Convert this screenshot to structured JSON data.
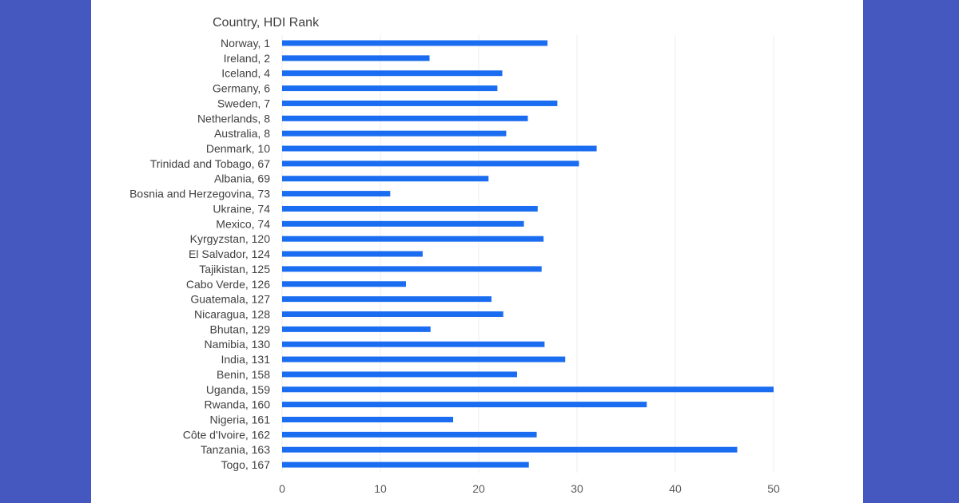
{
  "chart_data": {
    "type": "bar",
    "orientation": "horizontal",
    "y_axis_title": "Country, HDI Rank",
    "categories": [
      "Norway, 1",
      "Ireland, 2",
      "Iceland, 4",
      "Germany, 6",
      "Sweden, 7",
      "Netherlands, 8",
      "Australia, 8",
      "Denmark, 10",
      "Trinidad and Tobago, 67",
      "Albania, 69",
      "Bosnia and Herzegovina, 73",
      "Ukraine, 74",
      "Mexico, 74",
      "Kyrgyzstan, 120",
      "El Salvador, 124",
      "Tajikistan, 125",
      "Cabo Verde, 126",
      "Guatemala, 127",
      "Nicaragua, 128",
      "Bhutan, 129",
      "Namibia, 130",
      "India, 131",
      "Benin, 158",
      "Uganda, 159",
      "Rwanda, 160",
      "Nigeria, 161",
      "Côte d'Ivoire, 162",
      "Tanzania, 163",
      "Togo, 167"
    ],
    "values": [
      27.0,
      15.0,
      22.4,
      21.9,
      28.0,
      25.0,
      22.8,
      32.0,
      30.2,
      21.0,
      11.0,
      26.0,
      24.6,
      26.6,
      14.3,
      26.4,
      12.6,
      21.3,
      22.5,
      15.1,
      26.7,
      28.8,
      23.9,
      50.0,
      37.1,
      17.4,
      25.9,
      46.3,
      25.1
    ],
    "xlim": [
      0,
      50
    ],
    "xticks": [
      0,
      10,
      20,
      30,
      40,
      50
    ],
    "grid": true,
    "bar_color": "#1a6cf0",
    "legend": "none"
  }
}
